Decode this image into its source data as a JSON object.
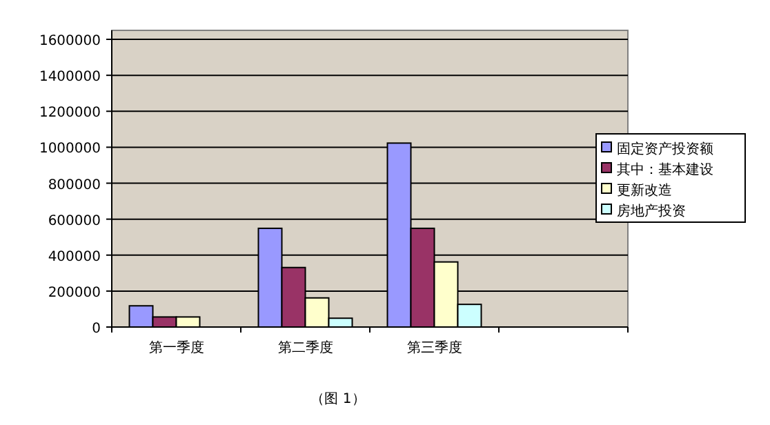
{
  "chart_data": {
    "type": "bar",
    "categories": [
      "第一季度",
      "第二季度",
      "第三季度",
      null
    ],
    "series": [
      {
        "name": "固定资产投资额",
        "color": "#9999ff",
        "values": [
          118000,
          549000,
          1023000,
          null
        ]
      },
      {
        "name": "其中：基本建设",
        "color": "#993366",
        "values": [
          56000,
          331000,
          549000,
          null
        ]
      },
      {
        "name": "更新改造",
        "color": "#ffffcc",
        "values": [
          56000,
          162000,
          362000,
          null
        ]
      },
      {
        "name": "房地产投资",
        "color": "#ccffff",
        "values": [
          null,
          49000,
          126000,
          null
        ]
      }
    ],
    "ylim": [
      0,
      1650000
    ],
    "yticks": [
      0,
      200000,
      400000,
      600000,
      800000,
      1000000,
      1200000,
      1400000,
      1600000
    ],
    "grid": "y",
    "legend": "right",
    "annotations": [
      "（图 1）"
    ]
  }
}
